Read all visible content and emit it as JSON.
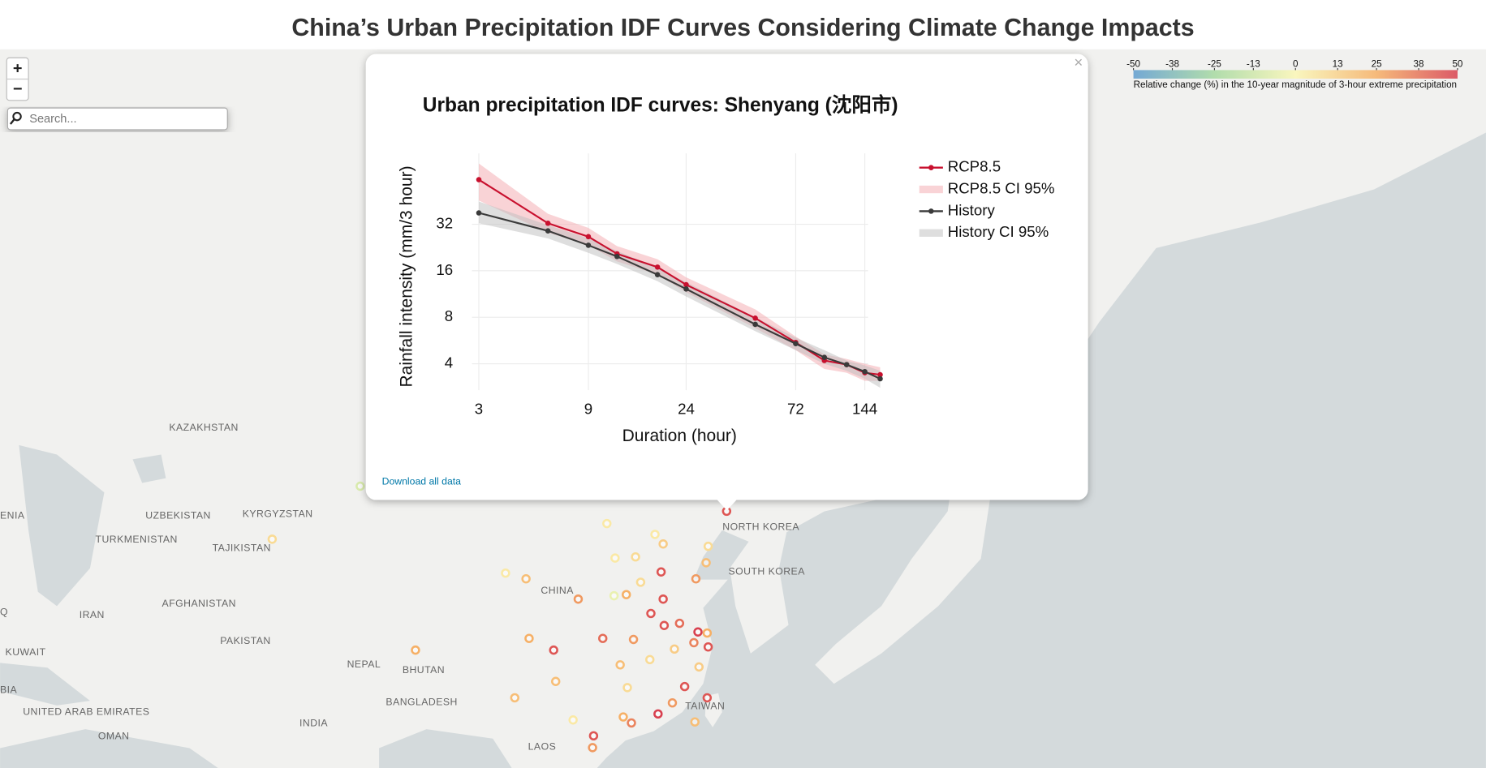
{
  "page": {
    "title": "China’s Urban Precipitation IDF Curves Considering Climate Change Impacts"
  },
  "map": {
    "zoom_in": "+",
    "zoom_out": "−",
    "search_placeholder": "Search...",
    "labels": [
      "KAZAKHSTAN",
      "UZBEKISTAN",
      "KYRGYZSTAN",
      "TURKMENISTAN",
      "TAJIKISTAN",
      "AFGHANISTAN",
      "IRAN",
      "PAKISTAN",
      "KUWAIT",
      "NEPAL",
      "BHUTAN",
      "CHINA",
      "NORTH KOREA",
      "SOUTH KOREA",
      "TAIWAN",
      "BANGLADESH",
      "INDIA",
      "UNITED ARAB EMIRATES",
      "OMAN",
      "LAOS",
      "ENIA",
      "Q",
      "BIA"
    ],
    "points": [
      {
        "lon": 123.4,
        "lat": 41.8,
        "value": 45
      },
      {
        "lon": 121.6,
        "lat": 38.9,
        "value": 10
      },
      {
        "lon": 116.4,
        "lat": 39.9,
        "value": 5
      },
      {
        "lon": 117.2,
        "lat": 39.1,
        "value": 15
      },
      {
        "lon": 114.5,
        "lat": 38.0,
        "value": 10
      },
      {
        "lon": 112.5,
        "lat": 37.9,
        "value": 5
      },
      {
        "lon": 117.0,
        "lat": 36.7,
        "value": 45
      },
      {
        "lon": 120.4,
        "lat": 36.1,
        "value": 30
      },
      {
        "lon": 113.6,
        "lat": 34.7,
        "value": 25
      },
      {
        "lon": 108.9,
        "lat": 34.3,
        "value": 30
      },
      {
        "lon": 117.2,
        "lat": 34.3,
        "value": 45
      },
      {
        "lon": 118.8,
        "lat": 32.1,
        "value": 40
      },
      {
        "lon": 121.5,
        "lat": 31.2,
        "value": 25
      },
      {
        "lon": 120.2,
        "lat": 30.3,
        "value": 35
      },
      {
        "lon": 117.3,
        "lat": 31.9,
        "value": 45
      },
      {
        "lon": 114.3,
        "lat": 30.6,
        "value": 30
      },
      {
        "lon": 113.0,
        "lat": 28.2,
        "value": 20
      },
      {
        "lon": 115.9,
        "lat": 28.7,
        "value": 10
      },
      {
        "lon": 119.3,
        "lat": 26.1,
        "value": 45
      },
      {
        "lon": 118.1,
        "lat": 24.5,
        "value": 30
      },
      {
        "lon": 113.3,
        "lat": 23.1,
        "value": 25
      },
      {
        "lon": 114.1,
        "lat": 22.5,
        "value": 35
      },
      {
        "lon": 108.4,
        "lat": 22.8,
        "value": 5
      },
      {
        "lon": 106.7,
        "lat": 26.6,
        "value": 20
      },
      {
        "lon": 106.5,
        "lat": 29.6,
        "value": 45
      },
      {
        "lon": 104.1,
        "lat": 30.7,
        "value": 25
      },
      {
        "lon": 102.7,
        "lat": 25.0,
        "value": 20
      },
      {
        "lon": 103.8,
        "lat": 36.1,
        "value": 20
      },
      {
        "lon": 101.8,
        "lat": 36.6,
        "value": 5
      },
      {
        "lon": 87.6,
        "lat": 43.8,
        "value": -10
      },
      {
        "lon": 79.0,
        "lat": 39.5,
        "value": 10
      },
      {
        "lon": 111.7,
        "lat": 40.8,
        "value": 5
      },
      {
        "lon": 121.5,
        "lat": 25.0,
        "value": 45
      },
      {
        "lon": 120.3,
        "lat": 22.6,
        "value": 20
      },
      {
        "lon": 110.3,
        "lat": 20.0,
        "value": 30
      },
      {
        "lon": 110.4,
        "lat": 21.2,
        "value": 45
      },
      {
        "lon": 116.7,
        "lat": 23.4,
        "value": 50
      },
      {
        "lon": 120.7,
        "lat": 28.0,
        "value": 15
      },
      {
        "lon": 121.6,
        "lat": 29.9,
        "value": 45
      },
      {
        "lon": 120.6,
        "lat": 31.3,
        "value": 50
      },
      {
        "lon": 121.4,
        "lat": 37.5,
        "value": 20
      },
      {
        "lon": 93.0,
        "lat": 29.6,
        "value": 25
      },
      {
        "lon": 115.0,
        "lat": 35.8,
        "value": 10
      },
      {
        "lon": 112.4,
        "lat": 34.6,
        "value": -5
      },
      {
        "lon": 118.3,
        "lat": 29.7,
        "value": 15
      },
      {
        "lon": 111.3,
        "lat": 30.7,
        "value": 40
      },
      {
        "lon": 116.0,
        "lat": 33.0,
        "value": 45
      },
      {
        "lon": 113.7,
        "lat": 26.0,
        "value": 10
      }
    ]
  },
  "colorbar": {
    "label": "Relative change (%) in the 10-year magnitude of 3-hour extreme precipitation",
    "range": [
      -50,
      50
    ],
    "ticks": [
      -50,
      -38,
      -25,
      -13,
      0,
      13,
      25,
      38,
      50
    ],
    "colors": [
      "#5e9ccf",
      "#a6d9a0",
      "#fbf7b5",
      "#f6b066",
      "#d8404f"
    ]
  },
  "popup": {
    "close": "×",
    "download_link": "Download all data"
  },
  "chart_data": {
    "type": "line",
    "title": "Urban precipitation IDF curves: Shenyang (沈阳市)",
    "x_label": "Duration (hour)",
    "y_label": "Rainfall intensity (mm/3 hour)",
    "x": [
      3,
      6,
      9,
      12,
      18,
      24,
      48,
      72,
      96,
      120,
      144,
      168
    ],
    "xlim": [
      2.8,
      180
    ],
    "ylim": [
      2.7,
      92
    ],
    "xticks": [
      3,
      9,
      24,
      72,
      144
    ],
    "yticks": [
      4,
      8,
      16,
      32
    ],
    "log_x": true,
    "log_y": true,
    "grid": true,
    "legend_position": "right",
    "series": [
      {
        "name": "RCP8.5",
        "color": "#c8102e",
        "values": [
          62.2,
          32.5,
          26.6,
          20.6,
          16.9,
          13.0,
          7.9,
          5.5,
          4.2,
          3.95,
          3.5,
          3.4
        ]
      },
      {
        "name": "RCP8.5 CI 95%",
        "color": "#f3a7ae",
        "upper": [
          79.1,
          37.4,
          30.3,
          23.1,
          19.0,
          14.5,
          9.0,
          6.0,
          4.6,
          4.3,
          4.0,
          3.8
        ],
        "lower": [
          45.6,
          28.2,
          23.4,
          18.4,
          15.1,
          11.6,
          6.8,
          4.9,
          3.7,
          3.5,
          3.1,
          3.1
        ]
      },
      {
        "name": "History",
        "color": "#3a3a3a",
        "values": [
          37.9,
          29.0,
          23.4,
          19.8,
          15.1,
          12.2,
          7.2,
          5.4,
          4.4,
          3.95,
          3.56,
          3.2
        ]
      },
      {
        "name": "History CI 95%",
        "color": "#bdbdbd",
        "upper": [
          44.9,
          31.6,
          25.9,
          21.5,
          16.7,
          13.5,
          8.0,
          5.9,
          4.9,
          4.2,
          3.9,
          3.6
        ],
        "lower": [
          32.5,
          25.9,
          20.9,
          17.7,
          13.7,
          10.9,
          6.5,
          4.9,
          4.0,
          3.6,
          3.2,
          2.8
        ]
      }
    ]
  }
}
